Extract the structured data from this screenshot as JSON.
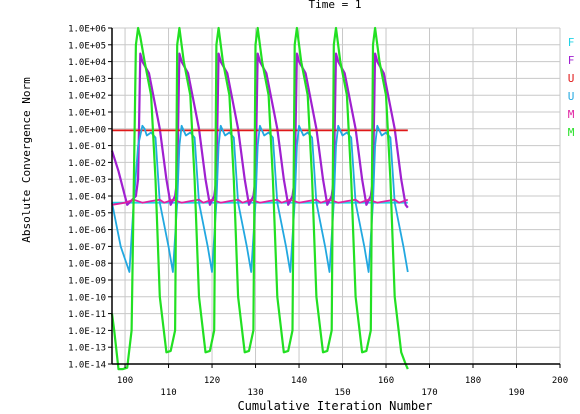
{
  "chart_data": {
    "type": "line",
    "title": "Time = 1",
    "xlabel": "Cumulative Iteration Number",
    "ylabel": "Absolute Convergence Norm",
    "xlim": [
      97,
      200
    ],
    "x_ticks": [
      100,
      110,
      120,
      130,
      140,
      150,
      160,
      170,
      180,
      190,
      200
    ],
    "ylim_log10": [
      -14,
      6
    ],
    "y_ticks": [
      "1.0E-14",
      "1.0E-13",
      "1.0E-12",
      "1.0E-11",
      "1.0E-10",
      "1.0E-09",
      "1.0E-08",
      "1.0E-07",
      "1.0E-06",
      "1.0E-05",
      "1.0E-04",
      "1.0E-03",
      "1.0E-02",
      "1.0E-01",
      "1.0E+00",
      "1.0E+01",
      "1.0E+02",
      "1.0E+03",
      "1.0E+04",
      "1.0E+05",
      "1.0E+06"
    ],
    "grid": true,
    "legend_position": "right",
    "series": [
      {
        "name": "F",
        "color": "#22d3e6",
        "x": [
          97,
          165
        ],
        "y": [
          4e-05,
          4e-05
        ]
      },
      {
        "name": "F",
        "color": "#a020d0",
        "x": [
          97,
          98.5,
          100.5,
          102.5,
          103,
          103.5,
          104,
          105.5,
          108,
          109.5,
          110.5,
          111.5,
          112,
          112.5,
          113,
          114.5,
          117,
          118.5,
          119.5,
          120.5,
          121,
          121.5,
          122,
          123.5,
          126,
          127.5,
          128.5,
          129.5,
          130,
          130.5,
          131,
          132.5,
          135,
          136.5,
          137.5,
          138.5,
          139,
          139.5,
          140,
          141.5,
          144,
          145.5,
          146.5,
          147.5,
          148,
          148.5,
          149,
          150.5,
          153,
          154.5,
          155.5,
          156.5,
          157,
          157.5,
          158,
          159.5,
          162,
          163.5,
          164.5,
          165
        ],
        "y": [
          0.05,
          0.003,
          3e-05,
          0.0001,
          0.001,
          30000.0,
          10000.0,
          2000.0,
          1,
          0.001,
          3e-05,
          0.0001,
          0.001,
          30000.0,
          10000.0,
          2000.0,
          1,
          0.001,
          3e-05,
          0.0001,
          0.001,
          30000.0,
          10000.0,
          2000.0,
          1,
          0.001,
          3e-05,
          0.0001,
          0.001,
          30000.0,
          10000.0,
          2000.0,
          1,
          0.001,
          3e-05,
          0.0001,
          0.001,
          30000.0,
          10000.0,
          2000.0,
          1,
          0.001,
          3e-05,
          0.0001,
          0.001,
          30000.0,
          10000.0,
          2000.0,
          1,
          0.001,
          3e-05,
          0.0001,
          0.001,
          30000.0,
          10000.0,
          2000.0,
          1,
          0.001,
          3e-05,
          2e-05
        ]
      },
      {
        "name": "U",
        "color": "#e01818",
        "x": [
          97,
          165
        ],
        "y": [
          0.8,
          0.8
        ]
      },
      {
        "name": "U",
        "color": "#22a8e0",
        "x": [
          97,
          99,
          101,
          102,
          103,
          104,
          104.5,
          105,
          106,
          107,
          108,
          110,
          111,
          112,
          112.5,
          113,
          114,
          115,
          116,
          117,
          119,
          120,
          121,
          121.5,
          122,
          123,
          124,
          125,
          126,
          128,
          129,
          130,
          130.5,
          131,
          132,
          133,
          134,
          135,
          137,
          138,
          139,
          139.5,
          140,
          141,
          142,
          143,
          144,
          146,
          147,
          148,
          148.5,
          149,
          150,
          151,
          152,
          153,
          155,
          156,
          157,
          157.5,
          158,
          159,
          160,
          161,
          162,
          164,
          165
        ],
        "y": [
          4e-05,
          1e-07,
          3e-09,
          4e-05,
          0.1,
          1.5,
          1,
          0.4,
          0.6,
          0.3,
          4e-05,
          1e-07,
          3e-09,
          4e-05,
          0.1,
          1.5,
          0.4,
          0.6,
          0.3,
          4e-05,
          1e-07,
          3e-09,
          4e-05,
          0.1,
          1.5,
          0.4,
          0.6,
          0.3,
          4e-05,
          1e-07,
          3e-09,
          4e-05,
          0.1,
          1.5,
          0.4,
          0.6,
          0.3,
          4e-05,
          1e-07,
          3e-09,
          4e-05,
          0.1,
          1.5,
          0.4,
          0.6,
          0.3,
          4e-05,
          1e-07,
          3e-09,
          4e-05,
          0.1,
          1.5,
          0.4,
          0.6,
          0.3,
          4e-05,
          1e-07,
          3e-09,
          4e-05,
          0.1,
          1.5,
          0.4,
          0.6,
          0.3,
          4e-05,
          1e-07,
          3e-09
        ]
      },
      {
        "name": "M",
        "color": "#e020a0",
        "x": [
          97,
          100,
          102,
          104,
          106,
          108,
          109,
          111,
          113,
          115,
          117,
          118,
          120,
          122,
          124,
          126,
          127,
          129,
          131,
          133,
          135,
          136,
          138,
          140,
          142,
          144,
          145,
          147,
          149,
          151,
          153,
          154,
          156,
          158,
          160,
          162,
          163,
          165
        ],
        "y": [
          3e-05,
          4e-05,
          6e-05,
          4e-05,
          5e-05,
          6e-05,
          4e-05,
          6e-05,
          4e-05,
          5e-05,
          6e-05,
          4e-05,
          6e-05,
          4e-05,
          5e-05,
          6e-05,
          4e-05,
          6e-05,
          4e-05,
          5e-05,
          6e-05,
          4e-05,
          6e-05,
          4e-05,
          5e-05,
          6e-05,
          4e-05,
          6e-05,
          4e-05,
          5e-05,
          6e-05,
          4e-05,
          6e-05,
          4e-05,
          5e-05,
          6e-05,
          4e-05,
          6e-05
        ]
      },
      {
        "name": "M",
        "color": "#22e022",
        "x": [
          97,
          97.5,
          98.5,
          99.5,
          100.5,
          101.5,
          102.5,
          103,
          103.5,
          104.5,
          106,
          107,
          108,
          109.5,
          110.5,
          111.5,
          112,
          112.5,
          113.5,
          115,
          116,
          117,
          118.5,
          119.5,
          120.5,
          121,
          121.5,
          122.5,
          124,
          125,
          126,
          127.5,
          128.5,
          129.5,
          130,
          130.5,
          131.5,
          133,
          134,
          135,
          136.5,
          137.5,
          138.5,
          139,
          139.5,
          140.5,
          142,
          143,
          144,
          145.5,
          146.5,
          147.5,
          148,
          148.5,
          149.5,
          151,
          152,
          153,
          154.5,
          155.5,
          156.5,
          157,
          157.5,
          158.5,
          160,
          161,
          162,
          163.5,
          164.5,
          165
        ],
        "y": [
          1e-11,
          1e-12,
          5e-15,
          5e-15,
          6e-15,
          1e-12,
          100000.0,
          1000000.0,
          300000.0,
          10000.0,
          100.0,
          0.001,
          1e-10,
          5e-14,
          6e-14,
          1e-12,
          100000.0,
          1000000.0,
          10000.0,
          100.0,
          0.001,
          1e-10,
          5e-14,
          6e-14,
          1e-12,
          100000.0,
          1000000.0,
          10000.0,
          100.0,
          0.001,
          1e-10,
          5e-14,
          6e-14,
          1e-12,
          100000.0,
          1000000.0,
          10000.0,
          100.0,
          0.001,
          1e-10,
          5e-14,
          6e-14,
          1e-12,
          100000.0,
          1000000.0,
          10000.0,
          100.0,
          0.001,
          1e-10,
          5e-14,
          6e-14,
          1e-12,
          100000.0,
          1000000.0,
          10000.0,
          100.0,
          0.001,
          1e-10,
          5e-14,
          6e-14,
          1e-12,
          100000.0,
          1000000.0,
          10000.0,
          100.0,
          0.001,
          1e-10,
          5e-14,
          1e-14,
          5e-15
        ]
      }
    ]
  }
}
